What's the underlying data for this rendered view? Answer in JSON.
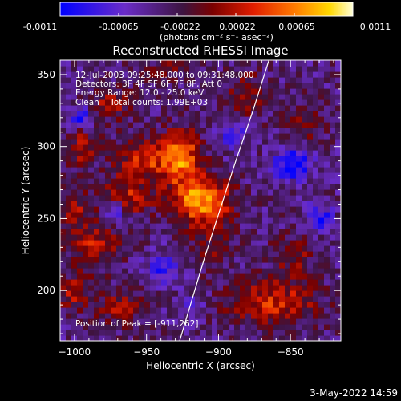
{
  "colorbar": {
    "ticks": [
      "-0.0011",
      "-0.00065",
      "-0.00022",
      "0.00022",
      "0.00065",
      "0.0011"
    ],
    "unit": "(photons cm⁻² s⁻¹ asec⁻²)"
  },
  "footer": {
    "date": "3-May-2022 14:59"
  },
  "chart_data": {
    "type": "heatmap",
    "title": "Reconstructed RHESSI Image",
    "xlabel": "Heliocentric X (arcsec)",
    "ylabel": "Heliocentric Y (arcsec)",
    "xlim": [
      -1010,
      -815
    ],
    "ylim": [
      165,
      360
    ],
    "xticks": [
      -1000,
      -950,
      -900,
      -850
    ],
    "yticks": [
      200,
      250,
      300,
      350
    ],
    "xtick_labels": [
      "−1000",
      "−950",
      "−900",
      "−850"
    ],
    "ytick_labels": [
      "200",
      "250",
      "300",
      "350"
    ],
    "colorbar_range": [
      -0.0011,
      0.0011
    ],
    "colormap": [
      "#0000ff",
      "#6a2cc8",
      "#3d1440",
      "#7a0000",
      "#e11d00",
      "#ff7a00",
      "#ffd800",
      "#ffffd8"
    ],
    "annotations": [
      "12-Jul-2003 09:25:48.000 to 09:31:48.000",
      "Detectors: 3F 4F 5F 6F 7F 8F, Att 0",
      "Energy Range: 12.0 - 25.0 keV",
      "Clean    Total counts: 1.99E+03"
    ],
    "peak_label": "Position of Peak = [-911,262]",
    "peak": {
      "x": -911,
      "y": 262
    },
    "limb_line": [
      {
        "x": -927,
        "y": 165
      },
      {
        "x": -918,
        "y": 195
      },
      {
        "x": -909,
        "y": 225
      },
      {
        "x": -899,
        "y": 256
      },
      {
        "x": -888,
        "y": 290
      },
      {
        "x": -876,
        "y": 325
      },
      {
        "x": -865,
        "y": 360
      }
    ],
    "sources": [
      {
        "x": -911,
        "y": 262,
        "amp": 0.0011,
        "sx": 14,
        "sy": 11
      },
      {
        "x": -925,
        "y": 292,
        "amp": 0.00085,
        "sx": 9,
        "sy": 14
      },
      {
        "x": -950,
        "y": 292,
        "amp": 0.0007,
        "sx": 15,
        "sy": 10
      },
      {
        "x": -965,
        "y": 265,
        "amp": 0.0006,
        "sx": 14,
        "sy": 9
      },
      {
        "x": -985,
        "y": 232,
        "amp": 0.00055,
        "sx": 12,
        "sy": 11
      },
      {
        "x": -975,
        "y": 330,
        "amp": 0.00045,
        "sx": 10,
        "sy": 8
      },
      {
        "x": -995,
        "y": 300,
        "amp": 0.0005,
        "sx": 7,
        "sy": 10
      },
      {
        "x": -968,
        "y": 188,
        "amp": 0.00045,
        "sx": 12,
        "sy": 9
      },
      {
        "x": -862,
        "y": 192,
        "amp": 0.00065,
        "sx": 22,
        "sy": 11
      },
      {
        "x": -848,
        "y": 225,
        "amp": 0.0004,
        "sx": 10,
        "sy": 10
      },
      {
        "x": -880,
        "y": 335,
        "amp": 0.0004,
        "sx": 10,
        "sy": 12
      },
      {
        "x": -838,
        "y": 318,
        "amp": 0.0004,
        "sx": 8,
        "sy": 10
      },
      {
        "x": -935,
        "y": 355,
        "amp": 0.0003,
        "sx": 12,
        "sy": 6
      },
      {
        "x": -1000,
        "y": 198,
        "amp": 0.0005,
        "sx": 8,
        "sy": 9
      },
      {
        "x": -1000,
        "y": 255,
        "amp": 0.0004,
        "sx": 8,
        "sy": 10
      },
      {
        "x": -905,
        "y": 230,
        "amp": 0.00035,
        "sx": 10,
        "sy": 10
      },
      {
        "x": -995,
        "y": 320,
        "amp": -0.0007,
        "sx": 6,
        "sy": 5
      },
      {
        "x": -972,
        "y": 255,
        "amp": -0.0006,
        "sx": 6,
        "sy": 6
      },
      {
        "x": -848,
        "y": 288,
        "amp": -0.0008,
        "sx": 9,
        "sy": 8
      },
      {
        "x": -830,
        "y": 250,
        "amp": -0.0007,
        "sx": 6,
        "sy": 6
      },
      {
        "x": -940,
        "y": 215,
        "amp": -0.0005,
        "sx": 8,
        "sy": 8
      },
      {
        "x": -890,
        "y": 310,
        "amp": -0.0004,
        "sx": 8,
        "sy": 8
      },
      {
        "x": -920,
        "y": 188,
        "amp": -0.0003,
        "sx": 8,
        "sy": 6
      }
    ]
  }
}
